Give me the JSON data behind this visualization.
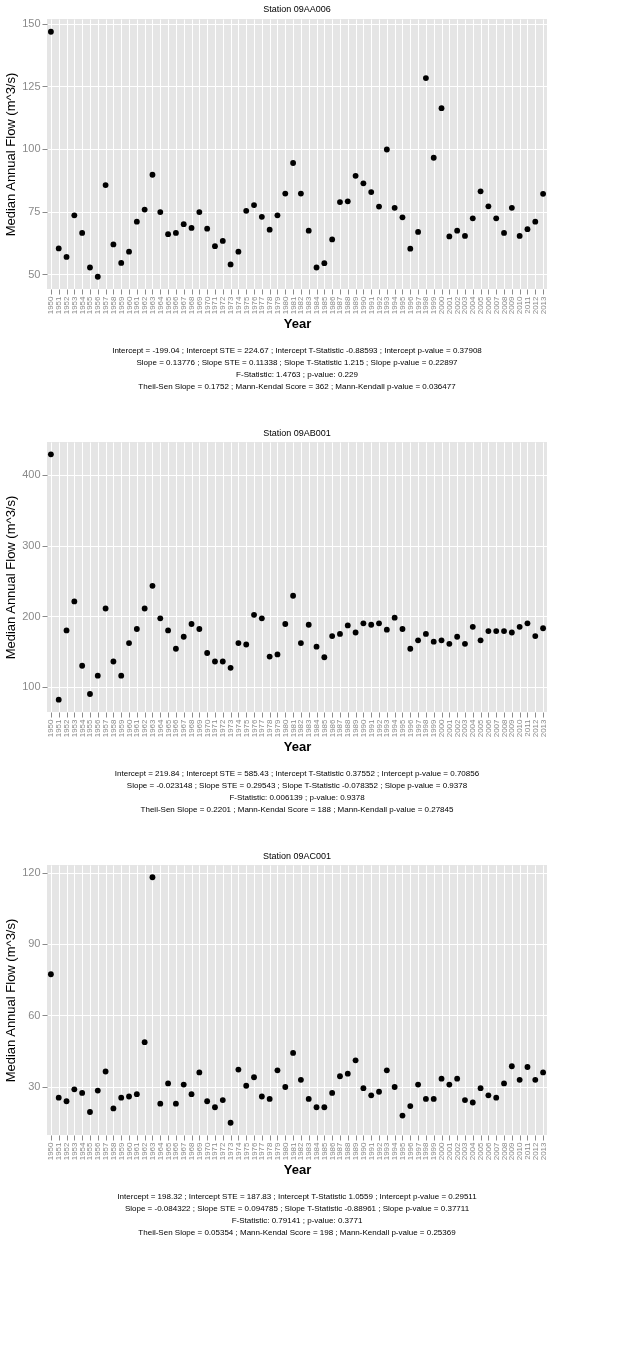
{
  "chart_data": [
    {
      "type": "scatter",
      "title": "Station 09AA006",
      "xlabel": "Year",
      "ylabel": "Median Annual Flow (m^3/s)",
      "marker": "circle",
      "grid": true,
      "categories": [
        "1950",
        "1951",
        "1952",
        "1953",
        "1954",
        "1955",
        "1956",
        "1957",
        "1958",
        "1959",
        "1960",
        "1961",
        "1962",
        "1963",
        "1964",
        "1965",
        "1966",
        "1967",
        "1968",
        "1969",
        "1970",
        "1971",
        "1972",
        "1973",
        "1974",
        "1975",
        "1976",
        "1977",
        "1978",
        "1979",
        "1980",
        "1981",
        "1982",
        "1983",
        "1984",
        "1985",
        "1986",
        "1987",
        "1988",
        "1989",
        "1990",
        "1991",
        "1992",
        "1993",
        "1994",
        "1995",
        "1996",
        "1997",
        "1998",
        "1999",
        "2000",
        "2001",
        "2002",
        "2003",
        "2004",
        "2005",
        "2006",
        "2007",
        "2008",
        "2009",
        "2010",
        "2011",
        "2012",
        "2013"
      ],
      "series": [
        {
          "color": "#000000",
          "values": [
            146.8,
            60.3,
            56.9,
            73.5,
            66.5,
            52.7,
            49.0,
            85.6,
            61.9,
            54.5,
            59.0,
            71.0,
            75.8,
            89.7,
            74.8,
            66.0,
            66.5,
            70.0,
            68.5,
            74.8,
            68.2,
            61.2,
            63.3,
            53.9,
            59.0,
            75.3,
            77.6,
            72.9,
            67.8,
            73.5,
            82.2,
            94.4,
            82.2,
            67.4,
            52.7,
            54.4,
            63.9,
            78.8,
            79.1,
            89.3,
            86.3,
            82.8,
            77.0,
            99.8,
            76.5,
            72.7,
            60.2,
            66.9,
            128.3,
            96.5,
            116.3,
            65.1,
            67.4,
            65.3,
            72.3,
            83.1,
            77.1,
            72.3,
            66.5,
            76.5,
            65.3,
            68.0,
            71.0,
            82.1
          ]
        }
      ],
      "ylim": [
        44.1,
        151.9
      ],
      "yticks": [
        50,
        75,
        100,
        125,
        150
      ],
      "annotations": [
        "Intercept = -199.04 ; Intercept STE = 224.67 ; Intercept T-Statistic -0.88593 ; Intercept p-value = 0.37908",
        "Slope = 0.13776 ; Slope STE = 0.11338 ; Slope T-Statistic 1.215 ; Slope p-value = 0.22897",
        "F-Statistic: 1.4763 ; p-value: 0.229",
        "Theil-Sen Slope =  0.1752 ; Mann-Kendal Score =  362 ; Mann-Kendall p-value =  0.036477"
      ]
    },
    {
      "type": "scatter",
      "title": "Station 09AB001",
      "xlabel": "Year",
      "ylabel": "Median Annual Flow (m^3/s)",
      "marker": "circle",
      "grid": true,
      "categories": [
        "1950",
        "1951",
        "1952",
        "1953",
        "1954",
        "1955",
        "1956",
        "1957",
        "1958",
        "1959",
        "1960",
        "1961",
        "1962",
        "1963",
        "1964",
        "1965",
        "1966",
        "1967",
        "1968",
        "1969",
        "1970",
        "1971",
        "1972",
        "1973",
        "1974",
        "1975",
        "1976",
        "1977",
        "1978",
        "1979",
        "1980",
        "1981",
        "1982",
        "1983",
        "1984",
        "1985",
        "1986",
        "1987",
        "1988",
        "1989",
        "1990",
        "1991",
        "1992",
        "1993",
        "1994",
        "1995",
        "1996",
        "1997",
        "1998",
        "1999",
        "2000",
        "2001",
        "2002",
        "2003",
        "2004",
        "2005",
        "2006",
        "2007",
        "2008",
        "2009",
        "2010",
        "2011",
        "2012",
        "2013"
      ],
      "series": [
        {
          "color": "#000000",
          "values": [
            429,
            82,
            180,
            221,
            130,
            90,
            116,
            211,
            136,
            116,
            162,
            182,
            211,
            243,
            197,
            180,
            154,
            171,
            189,
            182,
            148,
            136,
            136,
            127,
            162,
            160,
            202,
            197,
            143,
            146,
            189,
            229,
            162,
            188,
            157,
            142,
            172,
            175,
            187,
            177,
            190,
            188,
            190,
            181,
            198,
            182,
            154,
            166,
            175,
            164,
            166,
            161,
            171,
            161,
            185,
            166,
            179,
            179,
            179,
            177,
            185,
            190,
            172,
            183
          ]
        }
      ],
      "ylim": [
        64.6,
        446.4
      ],
      "yticks": [
        100,
        200,
        300,
        400
      ],
      "annotations": [
        "Intercept = 219.84 ; Intercept STE = 585.43 ; Intercept T-Statistic 0.37552 ; Intercept p-value = 0.70856",
        "Slope = -0.023148 ; Slope STE = 0.29543 ; Slope T-Statistic -0.078352 ; Slope p-value = 0.9378",
        "F-Statistic: 0.006139 ; p-value: 0.9378",
        "Theil-Sen Slope =  0.2201 ; Mann-Kendal Score =  188 ; Mann-Kendall p-value =  0.27845"
      ]
    },
    {
      "type": "scatter",
      "title": "Station 09AC001",
      "xlabel": "Year",
      "ylabel": "Median Annual Flow (m^3/s)",
      "marker": "circle",
      "grid": true,
      "categories": [
        "1950",
        "1951",
        "1952",
        "1953",
        "1954",
        "1955",
        "1956",
        "1957",
        "1958",
        "1959",
        "1960",
        "1961",
        "1962",
        "1963",
        "1964",
        "1965",
        "1966",
        "1967",
        "1968",
        "1969",
        "1970",
        "1971",
        "1972",
        "1973",
        "1974",
        "1975",
        "1976",
        "1977",
        "1978",
        "1979",
        "1980",
        "1981",
        "1982",
        "1983",
        "1984",
        "1985",
        "1986",
        "1987",
        "1988",
        "1989",
        "1990",
        "1991",
        "1992",
        "1993",
        "1994",
        "1995",
        "1996",
        "1997",
        "1998",
        "1999",
        "2000",
        "2001",
        "2002",
        "2003",
        "2004",
        "2005",
        "2006",
        "2007",
        "2008",
        "2009",
        "2010",
        "2011",
        "2012",
        "2013"
      ],
      "series": [
        {
          "color": "#000000",
          "values": [
            77.3,
            25.5,
            24,
            29,
            27.5,
            19.5,
            28.5,
            36.5,
            21,
            25.5,
            26,
            27,
            48.8,
            118,
            23,
            31.5,
            23,
            31,
            27,
            36.1,
            24,
            21.5,
            24.5,
            15,
            37.3,
            30.5,
            34.1,
            26,
            25,
            37,
            30,
            44.3,
            33,
            25,
            21.5,
            21.5,
            27.5,
            34.5,
            35.6,
            41.2,
            29.5,
            26.5,
            28,
            37,
            30,
            18,
            22,
            31,
            25,
            25,
            33.5,
            31,
            33.5,
            24.5,
            23.5,
            29.5,
            26.5,
            25.5,
            31.5,
            38.7,
            33,
            38.4,
            33,
            36.1
          ]
        }
      ],
      "ylim": [
        9.85,
        123.15
      ],
      "yticks": [
        30,
        60,
        90,
        120
      ],
      "annotations": [
        "Intercept = 198.32 ; Intercept STE = 187.83 ; Intercept T-Statistic 1.0559 ; Intercept p-value = 0.29511",
        "Slope = -0.084322 ; Slope STE = 0.094785 ; Slope T-Statistic -0.88961 ; Slope p-value = 0.37711",
        "F-Statistic: 0.79141 ; p-value: 0.3771",
        "Theil-Sen Slope =  0.05354 ; Mann-Kendal Score =  198 ; Mann-Kendall p-value =  0.25369"
      ]
    }
  ]
}
